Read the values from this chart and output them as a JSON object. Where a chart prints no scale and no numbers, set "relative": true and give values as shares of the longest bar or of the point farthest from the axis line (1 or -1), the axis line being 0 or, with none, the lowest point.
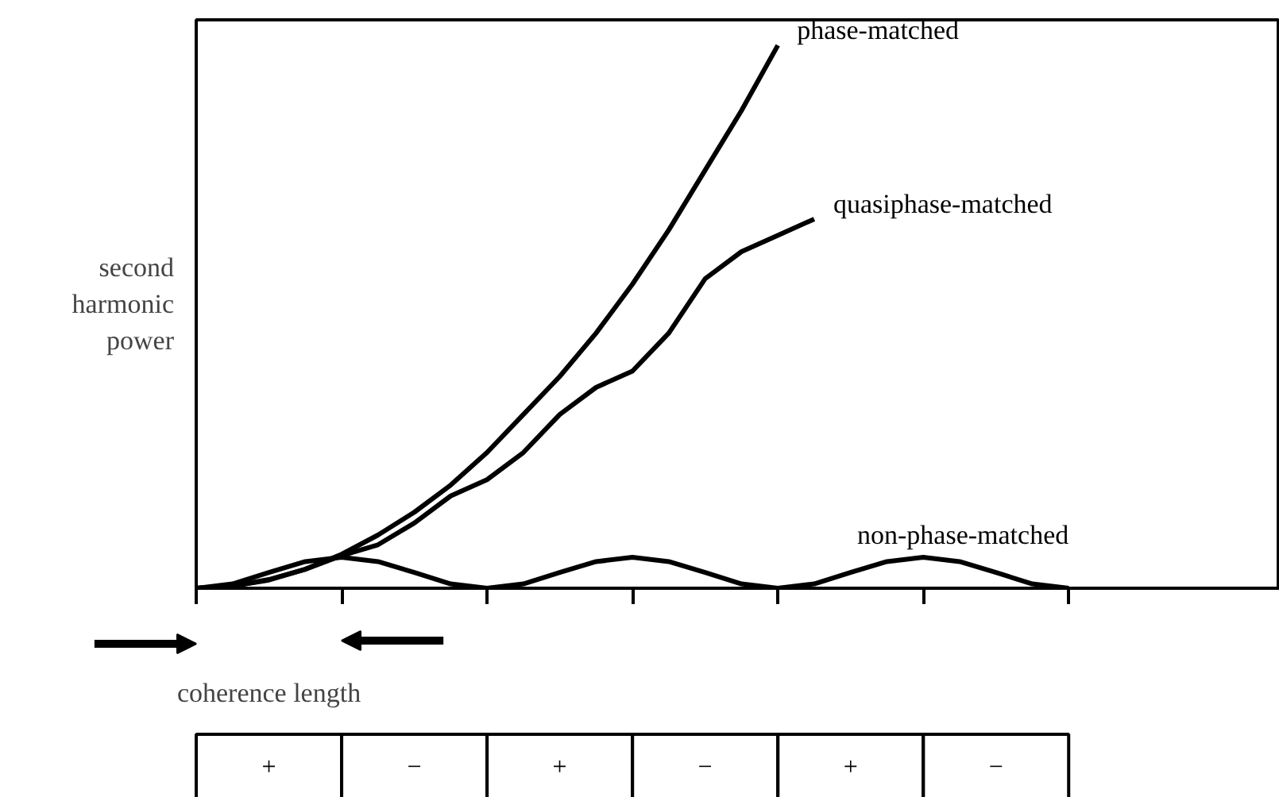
{
  "chart_data": {
    "type": "line",
    "relative": true,
    "ylabel": "second harmonic power",
    "categories": [
      null,
      null,
      null,
      null,
      null,
      null,
      null,
      null,
      null,
      null,
      null,
      null,
      null,
      null,
      null,
      null,
      null,
      null,
      null,
      null,
      null,
      null,
      null,
      null,
      null
    ],
    "grid": false,
    "marker": "none",
    "line_style": "solid",
    "series": [
      {
        "name": "phase-matched",
        "color": "#000000",
        "values": [
          0,
          0.004,
          0.016,
          0.035,
          0.0625,
          0.098,
          0.14,
          0.19,
          0.25,
          0.32,
          0.39,
          0.47,
          0.56,
          0.66,
          0.77,
          0.88,
          1.0,
          null,
          null,
          null,
          null,
          null,
          null,
          null,
          null
        ]
      },
      {
        "name": "quasiphase-matched",
        "color": "#000000",
        "values": [
          0,
          0.004,
          0.015,
          0.035,
          0.06,
          0.08,
          0.12,
          0.17,
          0.2,
          0.25,
          0.32,
          0.37,
          0.4,
          0.47,
          0.57,
          0.62,
          0.65,
          0.68,
          null,
          null,
          null,
          null,
          null,
          null,
          null
        ]
      },
      {
        "name": "non-phase-matched",
        "color": "#000000",
        "values": [
          0,
          0.008,
          0.029,
          0.049,
          0.057,
          0.049,
          0.029,
          0.008,
          0,
          0.008,
          0.029,
          0.049,
          0.057,
          0.049,
          0.029,
          0.008,
          0,
          0.008,
          0.029,
          0.049,
          0.057,
          0.049,
          0.029,
          0.008,
          0
        ]
      }
    ],
    "annotations": [
      "coherence length",
      "+",
      "−",
      "+",
      "−",
      "+",
      "−"
    ]
  }
}
